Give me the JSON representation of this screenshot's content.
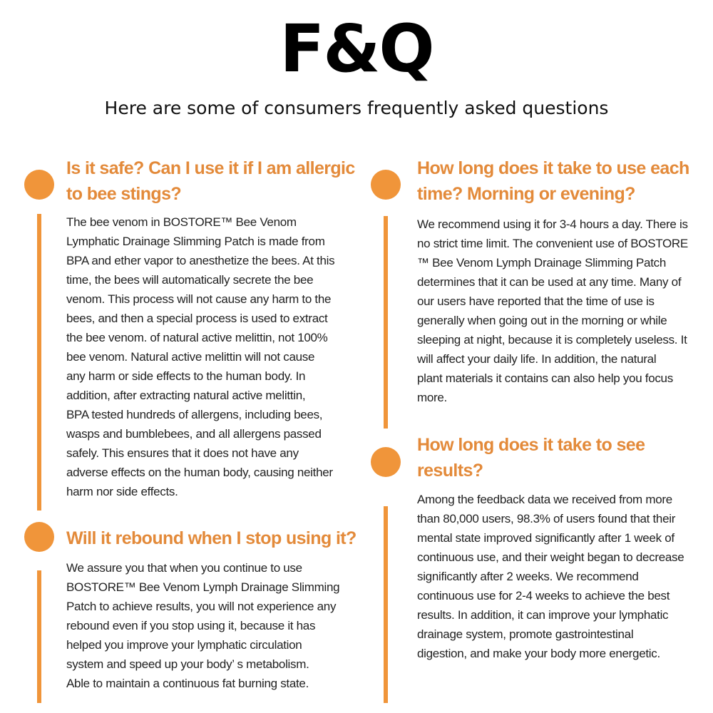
{
  "header": {
    "title": "F&Q",
    "subtitle": "Here are some of consumers frequently asked questions"
  },
  "colors": {
    "accent": "#f0953a",
    "question_text": "#e38a3a",
    "body_text": "#222222"
  },
  "faqs": [
    {
      "question": [
        "Is it safe? Can I use it if I am allergic",
        "to bee stings?"
      ],
      "answer": [
        "The bee venom in BOSTORE™ Bee Venom",
        "Lymphatic Drainage Slimming Patch is made from",
        "BPA and ether vapor to anesthetize the bees. At this",
        "time, the bees will automatically secrete the bee",
        "venom. This process will not cause any harm to the",
        "bees, and then a special process is used to extract",
        "the bee venom. of natural active melittin, not 100%",
        "bee venom. Natural active melittin will not cause",
        "any harm or side effects to the human body. In",
        "addition, after extracting natural active melittin,",
        "BPA tested hundreds of allergens, including bees,",
        "wasps and bumblebees, and all allergens passed",
        "safely. This ensures that it does not have any",
        "adverse effects on the human body, causing neither",
        "harm nor side effects."
      ]
    },
    {
      "question": [
        "Will it rebound when I stop using it?"
      ],
      "answer": [
        "We assure you that when you continue to use",
        "BOSTORE™ Bee Venom Lymph Drainage Slimming",
        "Patch to achieve results, you will not experience any",
        "rebound even if you stop using it, because it has",
        "helped you improve your lymphatic circulation",
        "system and speed up your body’ s metabolism.",
        "Able to maintain a continuous fat burning state."
      ]
    },
    {
      "question": [
        "How long does it take to use each",
        "time? Morning or evening?"
      ],
      "answer": [
        "We recommend using it for 3-4 hours a day. There is",
        "no strict time limit. The convenient use of BOSTORE",
        "™ Bee Venom Lymph Drainage Slimming Patch",
        "determines that it can be used at any time. Many of",
        "our users have reported that the time of use is",
        "generally when going out in the morning or while",
        "sleeping at night, because it is completely useless. It",
        "will affect your daily life. In addition, the natural",
        "plant materials it contains can also help you focus",
        "more."
      ]
    },
    {
      "question": [
        "How long does it take to see",
        "results?"
      ],
      "answer": [
        "Among the feedback data we received from more",
        "than 80,000 users, 98.3% of users found that their",
        "mental state improved significantly after 1 week of",
        "continuous use, and their weight began to decrease",
        "significantly after 2 weeks. We recommend",
        "continuous use for 2-4 weeks to achieve the best",
        "results. In addition, it can improve your lymphatic",
        "drainage system, promote gastrointestinal",
        "digestion, and make your body more energetic."
      ]
    }
  ]
}
